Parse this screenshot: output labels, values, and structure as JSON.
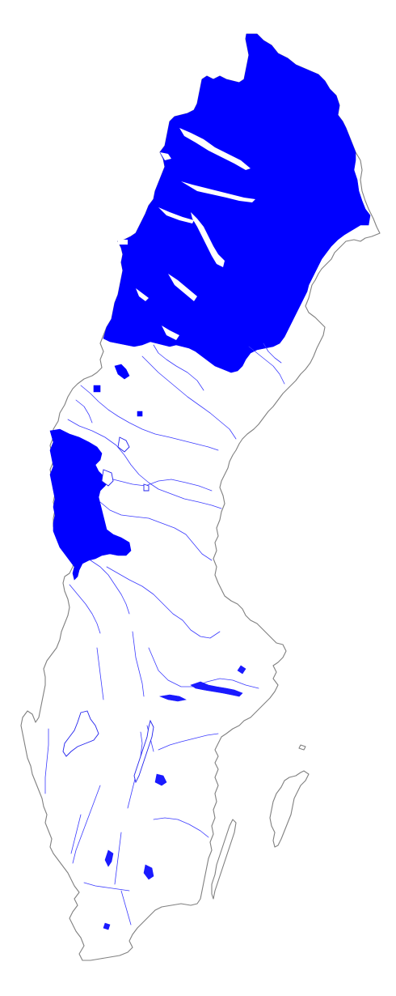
{
  "map": {
    "country_outline_color": "#808080",
    "highlight_color": "#0000ff",
    "river_color": "#3a3aff",
    "background_color": "#ffffff",
    "highlighted_regions": [
      {
        "name": "northern-region"
      },
      {
        "name": "western-mountain-region"
      },
      {
        "name": "small-patch-1"
      },
      {
        "name": "small-patch-2"
      }
    ],
    "islands": [
      "gotland",
      "oland"
    ]
  }
}
